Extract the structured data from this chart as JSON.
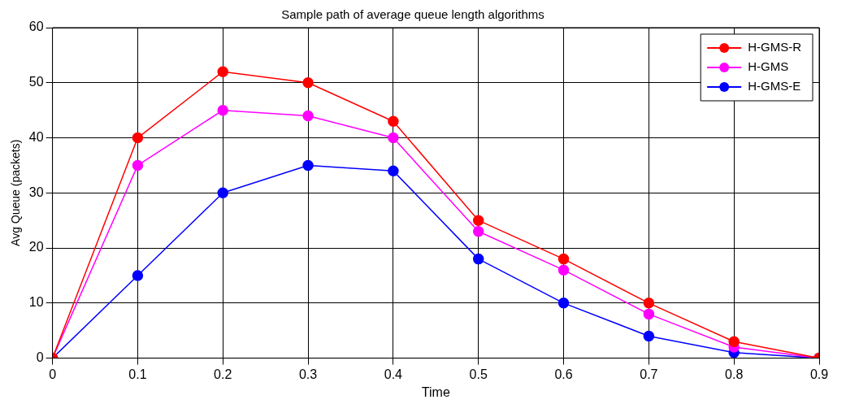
{
  "chart_data": {
    "type": "line",
    "title": "Sample path of average queue length algorithms",
    "xlabel": "Time",
    "ylabel": "Avg Queue (packets)",
    "x": [
      0,
      0.1,
      0.2,
      0.3,
      0.4,
      0.5,
      0.6,
      0.7,
      0.8,
      0.9
    ],
    "series": [
      {
        "name": "H-GMS-R",
        "color": "#ff0000",
        "values": [
          0,
          40,
          52,
          50,
          43,
          25,
          18,
          10,
          3,
          0
        ]
      },
      {
        "name": "H-GMS",
        "color": "#ff00ff",
        "values": [
          0,
          35,
          45,
          44,
          40,
          23,
          16,
          8,
          2,
          0
        ]
      },
      {
        "name": "H-GMS-E",
        "color": "#0000ff",
        "values": [
          0,
          15,
          30,
          35,
          34,
          18,
          10,
          4,
          1,
          0
        ]
      }
    ],
    "xlim": [
      0,
      0.9
    ],
    "xticks": [
      0,
      0.1,
      0.2,
      0.3,
      0.4,
      0.5,
      0.6,
      0.7,
      0.8,
      0.9
    ],
    "ylim": [
      0,
      60
    ],
    "yticks": [
      0,
      10,
      20,
      30,
      40,
      50,
      60
    ],
    "grid": true,
    "legend": "top right",
    "marker": "circle",
    "line_style": "solid"
  }
}
